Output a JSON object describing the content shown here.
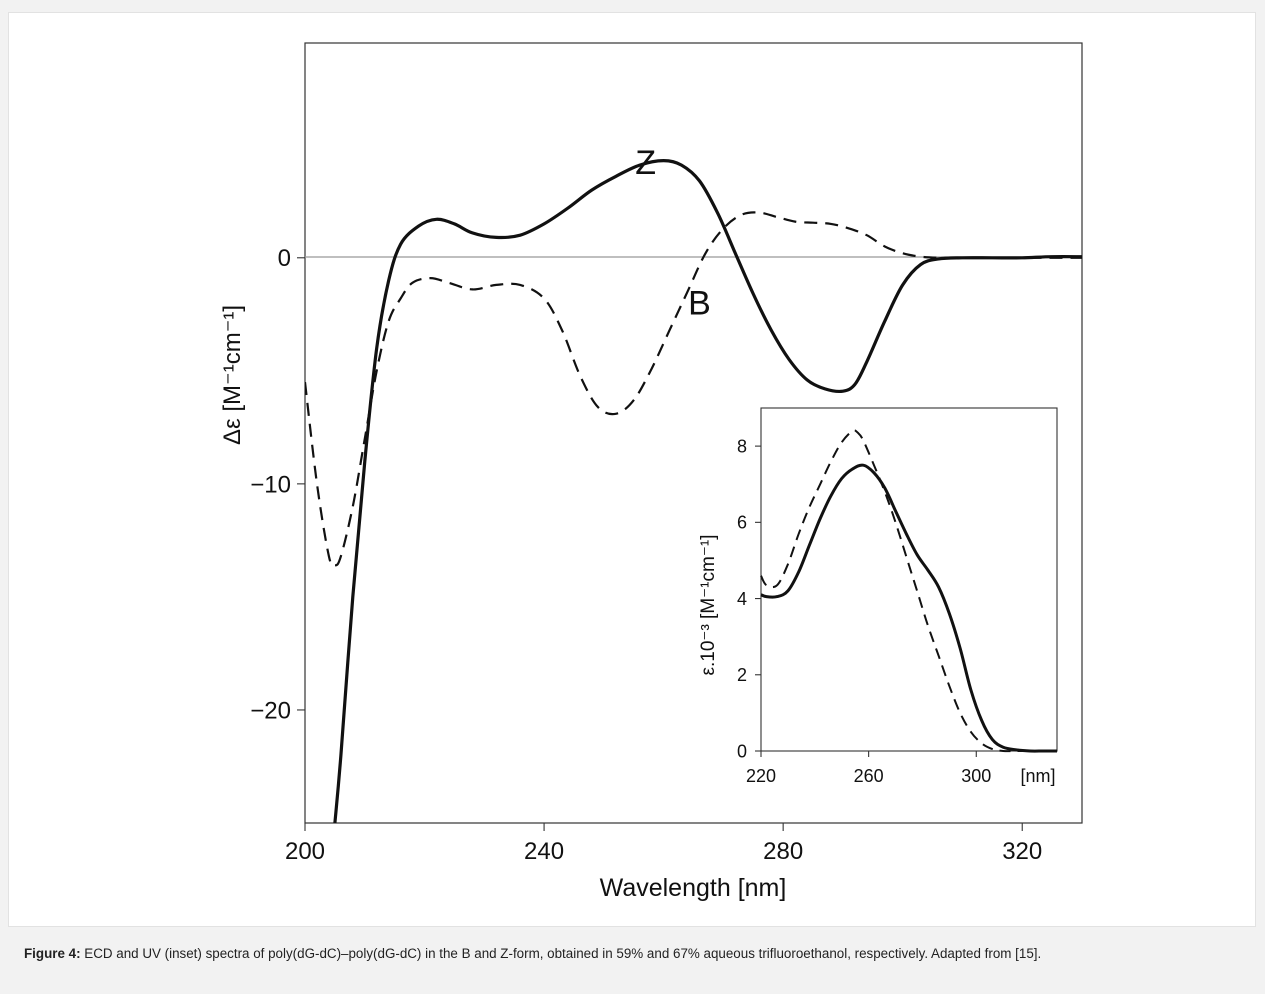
{
  "caption": {
    "label": "Figure 4:",
    "text": "ECD and UV (inset) spectra of poly(dG-dC)–poly(dG-dC) in the B and Z-form, obtained in 59% and 67% aqueous trifluoroethanol, respectively. Adapted from [15]."
  },
  "chart_data": [
    {
      "type": "line",
      "xlabel": "Wavelength [nm]",
      "ylabel": "Δε [M⁻¹cm⁻¹]",
      "xlim": [
        200,
        330
      ],
      "ylim": [
        -25,
        9.5
      ],
      "x_ticks": [
        "200",
        "240",
        "280",
        "320"
      ],
      "y_ticks": [
        "0",
        "−10",
        "−20"
      ],
      "grid": false,
      "zero_line": true,
      "series": [
        {
          "name": "Z",
          "style": "solid",
          "x": [
            205,
            206,
            208,
            210,
            212,
            214,
            216,
            219,
            222,
            225,
            228,
            232,
            236,
            240,
            244,
            248,
            252,
            256,
            260,
            263,
            266,
            269,
            272,
            275,
            278,
            281,
            284,
            287,
            290,
            292,
            294,
            297,
            300,
            303,
            306,
            310,
            315,
            320,
            325,
            330
          ],
          "y": [
            -25,
            -22,
            -15,
            -9,
            -4,
            -1,
            0.6,
            1.4,
            1.7,
            1.5,
            1.1,
            0.9,
            1.0,
            1.5,
            2.2,
            3.0,
            3.6,
            4.1,
            4.3,
            4.1,
            3.4,
            2.0,
            0.2,
            -1.6,
            -3.2,
            -4.5,
            -5.4,
            -5.8,
            -5.9,
            -5.6,
            -4.6,
            -2.8,
            -1.2,
            -0.3,
            -0.05,
            0,
            0,
            0,
            0.05,
            0.05
          ]
        },
        {
          "name": "B",
          "style": "dashed",
          "x": [
            200,
            202,
            204,
            205,
            206,
            208,
            210,
            212,
            214,
            216,
            218,
            221,
            224,
            228,
            232,
            236,
            240,
            243,
            246,
            249,
            252,
            255,
            258,
            261,
            264,
            267,
            270,
            273,
            276,
            279,
            282,
            285,
            288,
            291,
            294,
            297,
            300,
            303,
            306,
            310,
            315,
            320,
            325,
            330
          ],
          "y": [
            -5.5,
            -10,
            -13.2,
            -13.6,
            -13.2,
            -11,
            -8,
            -5,
            -2.8,
            -1.8,
            -1.1,
            -0.9,
            -1.1,
            -1.4,
            -1.2,
            -1.2,
            -1.8,
            -3.2,
            -5.2,
            -6.6,
            -6.9,
            -6.3,
            -4.9,
            -3.2,
            -1.5,
            0.2,
            1.3,
            1.9,
            2.0,
            1.8,
            1.6,
            1.55,
            1.5,
            1.3,
            1.0,
            0.5,
            0.2,
            0.05,
            0,
            0,
            0,
            0,
            0,
            0
          ]
        }
      ],
      "annotations": [
        {
          "text": "Z",
          "x": 257,
          "y": 3.7
        },
        {
          "text": "B",
          "x": 266,
          "y": -2.5
        }
      ]
    },
    {
      "type": "line",
      "title": "inset",
      "xlabel": "[nm]",
      "ylabel": "ε.10⁻³ [M⁻¹cm⁻¹]",
      "xlim": [
        220,
        330
      ],
      "ylim": [
        0,
        9
      ],
      "x_ticks": [
        "220",
        "260",
        "300"
      ],
      "y_ticks": [
        "0",
        "2",
        "4",
        "6",
        "8"
      ],
      "grid": false,
      "series": [
        {
          "style": "solid",
          "x": [
            220,
            222,
            226,
            230,
            234,
            238,
            242,
            246,
            250,
            254,
            258,
            262,
            266,
            270,
            274,
            278,
            282,
            286,
            290,
            294,
            298,
            302,
            306,
            310,
            315,
            320,
            325,
            330
          ],
          "y": [
            4.1,
            4.05,
            4.05,
            4.2,
            4.7,
            5.4,
            6.1,
            6.7,
            7.15,
            7.4,
            7.5,
            7.3,
            6.9,
            6.3,
            5.7,
            5.15,
            4.75,
            4.3,
            3.6,
            2.7,
            1.6,
            0.8,
            0.3,
            0.1,
            0.03,
            0,
            0,
            0
          ]
        },
        {
          "style": "dashed",
          "x": [
            220,
            222,
            226,
            230,
            234,
            238,
            242,
            246,
            250,
            254,
            256,
            258,
            262,
            266,
            270,
            274,
            278,
            282,
            286,
            290,
            294,
            298,
            302,
            306,
            310,
            315,
            320,
            325,
            330
          ],
          "y": [
            4.6,
            4.35,
            4.35,
            4.9,
            5.7,
            6.4,
            7.0,
            7.6,
            8.1,
            8.4,
            8.35,
            8.15,
            7.5,
            6.8,
            6.0,
            5.1,
            4.2,
            3.3,
            2.5,
            1.7,
            1.0,
            0.5,
            0.2,
            0.05,
            0,
            0,
            0,
            0,
            0
          ]
        }
      ]
    }
  ]
}
